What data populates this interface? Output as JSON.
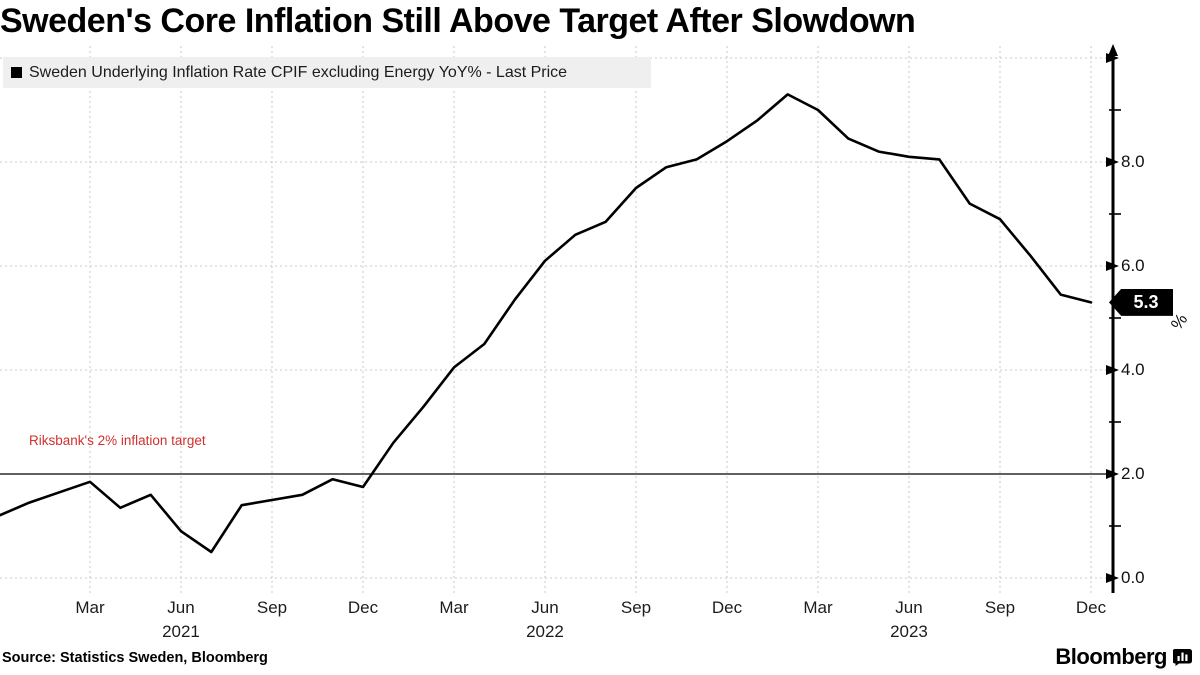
{
  "title": "Sweden's Core Inflation Still Above Target After Slowdown",
  "legend": {
    "swatch_color": "#000000",
    "label": "Sweden Underlying Inflation Rate CPIF excluding Energy YoY% - Last Price"
  },
  "annotation": {
    "text": "Riksbank's 2% inflation target",
    "color": "#d0312d",
    "target_value": 2.0
  },
  "last_price": {
    "value": "5.3",
    "bg_color": "#000000",
    "text_color": "#ffffff"
  },
  "y_axis": {
    "unit_label": "%",
    "tick_labels": [
      "0.0",
      "2.0",
      "4.0",
      "6.0",
      "8.0"
    ],
    "tick_values": [
      0,
      2,
      4,
      6,
      8
    ],
    "arrow_tick_values": [
      0,
      2,
      4,
      6,
      8,
      10
    ],
    "minor_tick_values": [
      1,
      3,
      5,
      7,
      9
    ],
    "dashed_gridline_values": [
      0,
      4,
      6,
      8,
      10
    ],
    "range": [
      0,
      10.2
    ]
  },
  "x_axis": {
    "ticks": [
      {
        "label": "Mar",
        "month": "2021-03"
      },
      {
        "label": "Jun",
        "month": "2021-06"
      },
      {
        "label": "Sep",
        "month": "2021-09"
      },
      {
        "label": "Dec",
        "month": "2021-12"
      },
      {
        "label": "Mar",
        "month": "2022-03"
      },
      {
        "label": "Jun",
        "month": "2022-06"
      },
      {
        "label": "Sep",
        "month": "2022-09"
      },
      {
        "label": "Dec",
        "month": "2022-12"
      },
      {
        "label": "Mar",
        "month": "2023-03"
      },
      {
        "label": "Jun",
        "month": "2023-06"
      },
      {
        "label": "Sep",
        "month": "2023-09"
      },
      {
        "label": "Dec",
        "month": "2023-12"
      }
    ],
    "years": [
      {
        "label": "2021",
        "month": "2021-06"
      },
      {
        "label": "2022",
        "month": "2022-06"
      },
      {
        "label": "2023",
        "month": "2023-06"
      }
    ]
  },
  "source": "Source: Statistics Sweden, Bloomberg",
  "logo_text": "Bloomberg",
  "colors": {
    "line": "#000000",
    "grid": "#c8c8c8",
    "axis": "#000000",
    "legend_bg": "#efefef",
    "annotation_red": "#d0312d"
  },
  "chart_data": {
    "type": "line",
    "title": "Sweden's Core Inflation Still Above Target After Slowdown",
    "series_name": "Sweden Underlying Inflation Rate CPIF excluding Energy YoY% - Last Price",
    "x": [
      "2020-12",
      "2021-01",
      "2021-02",
      "2021-03",
      "2021-04",
      "2021-05",
      "2021-06",
      "2021-07",
      "2021-08",
      "2021-09",
      "2021-10",
      "2021-11",
      "2021-12",
      "2022-01",
      "2022-02",
      "2022-03",
      "2022-04",
      "2022-05",
      "2022-06",
      "2022-07",
      "2022-08",
      "2022-09",
      "2022-10",
      "2022-11",
      "2022-12",
      "2023-01",
      "2023-02",
      "2023-03",
      "2023-04",
      "2023-05",
      "2023-06",
      "2023-07",
      "2023-08",
      "2023-09",
      "2023-10",
      "2023-11",
      "2023-12"
    ],
    "values": [
      1.2,
      1.45,
      1.65,
      1.85,
      1.35,
      1.6,
      0.9,
      0.5,
      1.4,
      1.5,
      1.6,
      1.9,
      1.75,
      2.6,
      3.3,
      4.05,
      4.5,
      5.35,
      6.1,
      6.6,
      6.85,
      7.5,
      7.9,
      8.05,
      8.4,
      8.8,
      9.3,
      9.0,
      8.45,
      8.2,
      8.1,
      8.05,
      7.2,
      6.9,
      6.2,
      5.45,
      5.3
    ],
    "last_value": 5.3,
    "reference_line": {
      "value": 2.0,
      "label": "Riksbank's 2% inflation target"
    },
    "ylabel": "%",
    "ylim": [
      0,
      10.2
    ],
    "grid": "dashed, vertical each quarter, horizontal each 2.0",
    "legend_position": "top-left",
    "line_color": "#000000"
  }
}
